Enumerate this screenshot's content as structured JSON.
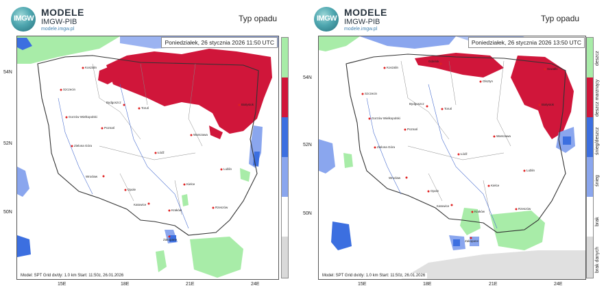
{
  "panels": [
    {
      "logo": {
        "mark": "IMGW",
        "title": "MODELE",
        "subtitle": "IMGW-PIB",
        "url": "modele.imgw.pl"
      },
      "precip_title": "Typ opadu",
      "datetime": "Poniedziałek, 26 stycznia 2026 11:50 UTC",
      "footer": "Model: SPT   Grid dx/dy: 1.0 km   Start: 11:50z, 26.01.2026",
      "lat_labels": [
        "54N",
        "52N",
        "50N"
      ],
      "lon_labels": [
        "15E",
        "18E",
        "21E",
        "24E"
      ],
      "cities": [
        "Koszalin",
        "Szczecin",
        "Bydgoszcz",
        "Toruń",
        "Gorzów Wielkopolski",
        "Poznań",
        "Zielona Góra",
        "Łódź",
        "Warszawa",
        "Białystok",
        "Wrocław",
        "Opole",
        "Kielce",
        "Lublin",
        "Katowice",
        "Kraków",
        "Rzeszów",
        "Zakopane"
      ]
    },
    {
      "logo": {
        "mark": "IMGW",
        "title": "MODELE",
        "subtitle": "IMGW-PIB",
        "url": "modele.imgw.pl"
      },
      "precip_title": "Typ opadu",
      "datetime": "Poniedziałek, 26 stycznia 2026 13:50 UTC",
      "footer": "Model: SPT   Grid dx/dy: 1.0 km   Start: 11:50z, 26.01.2026",
      "lat_labels": [
        "54N",
        "52N",
        "50N"
      ],
      "lon_labels": [
        "15E",
        "18E",
        "21E",
        "24E"
      ],
      "cities": [
        "Gdańsk",
        "Koszalin",
        "Olsztyn",
        "Suwałki",
        "Szczecin",
        "Bydgoszcz",
        "Toruń",
        "Gorzów Wielkopolski",
        "Poznań",
        "Białystok",
        "Warszawa",
        "Zielona Góra",
        "Łódź",
        "Lublin",
        "Wrocław",
        "Kielce",
        "Opole",
        "Katowice",
        "Kraków",
        "Rzeszów",
        "Zakopane"
      ]
    }
  ],
  "legend": {
    "items": [
      {
        "label": "deszcz",
        "color": "#a8eca8"
      },
      {
        "label": "deszcz marznący",
        "color": "#d0163a"
      },
      {
        "label": "śnieg/deszcz",
        "color": "#3c6fe0"
      },
      {
        "label": "śnieg",
        "color": "#8aa6ee"
      },
      {
        "label": "brak",
        "color": "#ffffff"
      },
      {
        "label": "brak danych",
        "color": "#d9d9d9"
      }
    ]
  },
  "colors": {
    "rain": "#a8eca8",
    "freezing_rain": "#d0163a",
    "sleet": "#3c6fe0",
    "snow": "#8aa6ee",
    "no_data": "#e0e0e0",
    "border": "#333333",
    "river": "#4a6fd0"
  }
}
